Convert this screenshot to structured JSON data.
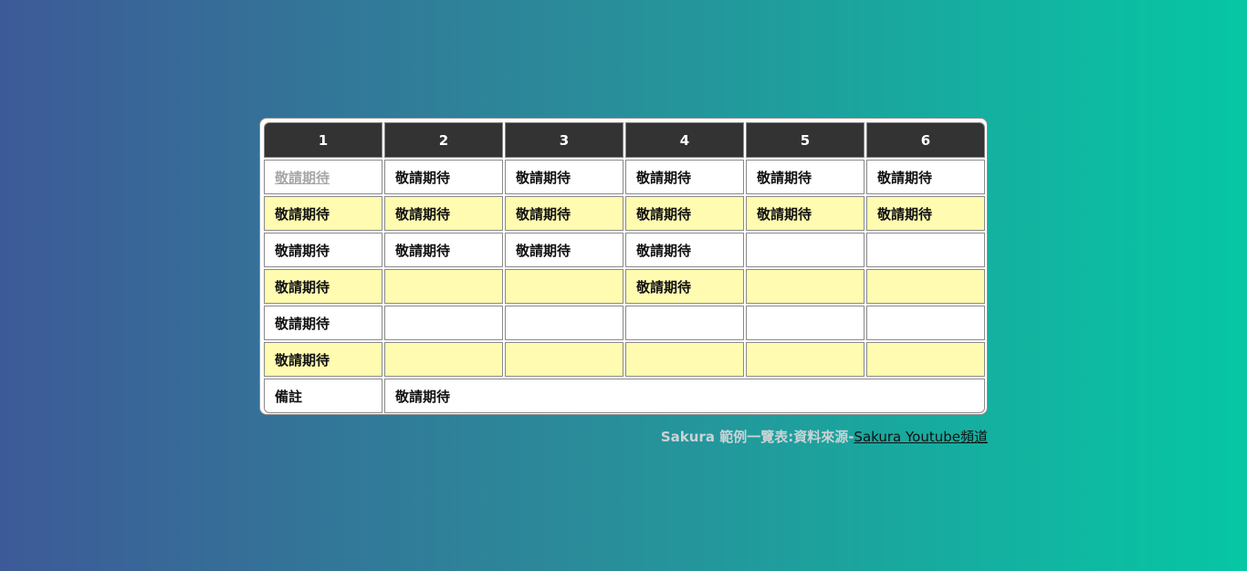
{
  "table": {
    "headers": [
      "1",
      "2",
      "3",
      "4",
      "5",
      "6"
    ],
    "rows": [
      [
        "敬請期待",
        "敬請期待",
        "敬請期待",
        "敬請期待",
        "敬請期待",
        "敬請期待"
      ],
      [
        "敬請期待",
        "敬請期待",
        "敬請期待",
        "敬請期待",
        "敬請期待",
        "敬請期待"
      ],
      [
        "敬請期待",
        "敬請期待",
        "敬請期待",
        "敬請期待",
        "",
        ""
      ],
      [
        "敬請期待",
        "",
        "",
        "敬請期待",
        "",
        ""
      ],
      [
        "敬請期待",
        "",
        "",
        "",
        "",
        ""
      ],
      [
        "敬請期待",
        "",
        "",
        "",
        "",
        ""
      ]
    ],
    "note": {
      "label": "備註",
      "value": "敬請期待"
    }
  },
  "footer": {
    "prefix": "Sakura 範例一覽表:資料來源-",
    "link_text": "Sakura Youtube頻道"
  },
  "colors": {
    "header_bg": "#333333",
    "row_alt_bg": "#fffbb0",
    "row_bg": "#ffffff",
    "link_visited": "#a7a7a7"
  }
}
